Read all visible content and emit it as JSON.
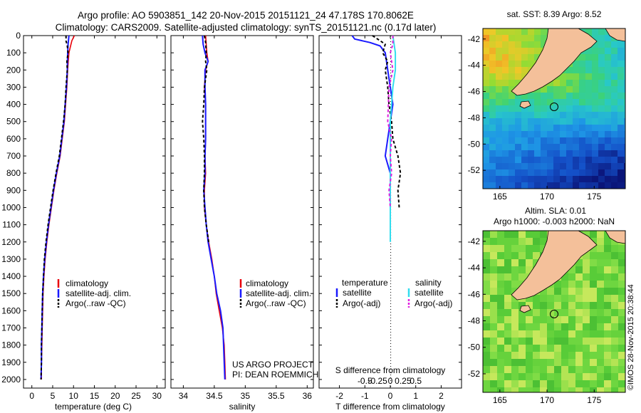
{
  "header": {
    "title_line1": "Argo profile: AO 5903851_142 20-Nov-2015 20151121_24 47.178S 170.8062E",
    "title_line2": "Climatology: CARS2009. Satellite-adjusted climatology: synTS_20151121.nc (0.17d later)"
  },
  "credit": {
    "project": "US ARGO PROJECT",
    "pi": "PI: DEAN ROEMMICH",
    "imos": "©IMOS 28-Nov-2015 20:38:44"
  },
  "colors": {
    "climatology": "#e8000b",
    "satellite": "#1a1aff",
    "argo": "#000000",
    "salinity_sat": "#33ddee",
    "salinity_argo": "#e020e0",
    "land": "#f4c09a"
  },
  "chart_data": [
    {
      "type": "line",
      "name": "temperature-panel",
      "xlabel": "temperature (deg C)",
      "xlim": [
        -2,
        32
      ],
      "xticks": [
        0,
        5,
        10,
        15,
        20,
        25,
        30
      ],
      "ylim": [
        0,
        2050
      ],
      "yticks": [
        0,
        100,
        200,
        300,
        400,
        500,
        600,
        700,
        800,
        900,
        1000,
        1100,
        1200,
        1300,
        1400,
        1500,
        1600,
        1700,
        1800,
        1900,
        2000
      ],
      "legend": {
        "position": "middle",
        "entries": [
          "climatology",
          "satellite-adj. clim.",
          "Argo(..raw -QC)"
        ]
      },
      "series": [
        {
          "name": "climatology",
          "points": [
            [
              10.2,
              0
            ],
            [
              9.6,
              30
            ],
            [
              9.3,
              60
            ],
            [
              8.9,
              100
            ],
            [
              8.6,
              200
            ],
            [
              8.4,
              300
            ],
            [
              8.1,
              400
            ],
            [
              7.8,
              500
            ],
            [
              7.3,
              600
            ],
            [
              6.8,
              700
            ],
            [
              6.0,
              800
            ],
            [
              5.3,
              900
            ],
            [
              4.7,
              1000
            ],
            [
              4.1,
              1100
            ],
            [
              3.6,
              1200
            ],
            [
              3.2,
              1300
            ],
            [
              2.9,
              1400
            ],
            [
              2.7,
              1500
            ],
            [
              2.6,
              1600
            ],
            [
              2.5,
              1700
            ],
            [
              2.4,
              1800
            ],
            [
              2.3,
              1900
            ],
            [
              2.3,
              2000
            ]
          ]
        },
        {
          "name": "satellite",
          "points": [
            [
              8.9,
              0
            ],
            [
              8.7,
              50
            ],
            [
              8.6,
              100
            ],
            [
              8.5,
              200
            ],
            [
              8.3,
              300
            ],
            [
              8.0,
              400
            ],
            [
              7.7,
              500
            ],
            [
              7.2,
              600
            ],
            [
              6.7,
              700
            ],
            [
              5.9,
              800
            ],
            [
              5.2,
              900
            ],
            [
              4.6,
              1000
            ],
            [
              4.0,
              1100
            ],
            [
              3.5,
              1200
            ],
            [
              3.1,
              1300
            ],
            [
              2.8,
              1400
            ],
            [
              2.6,
              1500
            ],
            [
              2.5,
              1600
            ],
            [
              2.4,
              1700
            ],
            [
              2.3,
              1800
            ],
            [
              2.3,
              1900
            ],
            [
              2.2,
              2000
            ]
          ]
        },
        {
          "name": "argo",
          "points": [
            [
              8.2,
              0
            ],
            [
              8.2,
              30
            ],
            [
              8.5,
              60
            ],
            [
              8.7,
              100
            ],
            [
              8.4,
              150
            ],
            [
              8.5,
              200
            ],
            [
              8.2,
              300
            ],
            [
              8.0,
              400
            ],
            [
              7.6,
              500
            ],
            [
              7.1,
              600
            ],
            [
              6.6,
              700
            ],
            [
              5.8,
              800
            ],
            [
              5.1,
              900
            ],
            [
              4.5,
              1000
            ],
            [
              3.9,
              1100
            ],
            [
              3.4,
              1200
            ],
            [
              3.0,
              1300
            ],
            [
              2.8,
              1400
            ],
            [
              2.6,
              1500
            ],
            [
              2.5,
              1600
            ],
            [
              2.4,
              1700
            ],
            [
              2.3,
              1800
            ],
            [
              2.3,
              1900
            ],
            [
              2.2,
              2000
            ]
          ]
        }
      ]
    },
    {
      "type": "line",
      "name": "salinity-panel",
      "xlabel": "salinity",
      "xlim": [
        33.8,
        36.1
      ],
      "xticks": [
        34,
        34.5,
        35,
        35.5,
        36
      ],
      "ylim": [
        0,
        2050
      ],
      "legend": {
        "position": "middle",
        "entries": [
          "climatology",
          "satellite-adj. clim.",
          "Argo(..raw -QC)"
        ]
      },
      "series": [
        {
          "name": "climatology",
          "points": [
            [
              34.36,
              0
            ],
            [
              34.38,
              100
            ],
            [
              34.4,
              150
            ],
            [
              34.36,
              200
            ],
            [
              34.34,
              300
            ],
            [
              34.36,
              400
            ],
            [
              34.36,
              500
            ],
            [
              34.36,
              600
            ],
            [
              34.35,
              700
            ],
            [
              34.36,
              800
            ],
            [
              34.34,
              900
            ],
            [
              34.34,
              1000
            ],
            [
              34.37,
              1100
            ],
            [
              34.41,
              1200
            ],
            [
              34.46,
              1300
            ],
            [
              34.5,
              1400
            ],
            [
              34.53,
              1500
            ],
            [
              34.58,
              1600
            ],
            [
              34.63,
              1700
            ],
            [
              34.66,
              1800
            ],
            [
              34.67,
              1900
            ],
            [
              34.68,
              2000
            ]
          ]
        },
        {
          "name": "satellite",
          "points": [
            [
              34.31,
              0
            ],
            [
              34.32,
              50
            ],
            [
              34.35,
              100
            ],
            [
              34.4,
              150
            ],
            [
              34.35,
              200
            ],
            [
              34.35,
              300
            ],
            [
              34.36,
              400
            ],
            [
              34.36,
              500
            ],
            [
              34.36,
              600
            ],
            [
              34.35,
              700
            ],
            [
              34.35,
              800
            ],
            [
              34.33,
              900
            ],
            [
              34.35,
              1000
            ],
            [
              34.37,
              1100
            ],
            [
              34.4,
              1200
            ],
            [
              34.45,
              1300
            ],
            [
              34.5,
              1400
            ],
            [
              34.54,
              1500
            ],
            [
              34.6,
              1600
            ],
            [
              34.64,
              1700
            ],
            [
              34.65,
              1800
            ],
            [
              34.66,
              1900
            ],
            [
              34.67,
              2000
            ]
          ]
        },
        {
          "name": "argo",
          "points": [
            [
              34.34,
              0
            ],
            [
              34.36,
              40
            ],
            [
              34.37,
              100
            ],
            [
              34.36,
              150
            ],
            [
              34.38,
              200
            ],
            [
              34.34,
              300
            ],
            [
              34.33,
              400
            ],
            [
              34.31,
              500
            ],
            [
              34.33,
              600
            ],
            [
              34.34,
              700
            ],
            [
              34.34,
              800
            ],
            [
              34.33,
              900
            ],
            [
              34.34,
              1000
            ],
            [
              34.37,
              1100
            ],
            [
              34.41,
              1200
            ]
          ]
        }
      ]
    },
    {
      "type": "line",
      "name": "difference-panel",
      "xlabel": "T difference from climatology",
      "xlabel_top": "S difference from climatology",
      "xlim": [
        -2.8,
        2.8
      ],
      "xticks": [
        -2,
        -1,
        0,
        1,
        2
      ],
      "x2ticks": [
        -0.5,
        -0.25,
        0,
        0.25,
        0.5
      ],
      "ylim": [
        0,
        2050
      ],
      "legend": {
        "position": "lower",
        "temperature_title": "temperature",
        "salinity_title": "salinity",
        "entries": [
          "satellite",
          "Argo(-adj)",
          "satellite",
          "Argo(-adj)"
        ]
      },
      "series": [
        {
          "name": "T satellite",
          "points": [
            [
              -1.5,
              0
            ],
            [
              -1.4,
              20
            ],
            [
              -0.8,
              40
            ],
            [
              -0.4,
              60
            ],
            [
              -0.2,
              100
            ],
            [
              -0.1,
              200
            ],
            [
              0.0,
              300
            ],
            [
              0.1,
              400
            ],
            [
              0.0,
              500
            ],
            [
              -0.1,
              600
            ],
            [
              -0.2,
              700
            ],
            [
              0.0,
              800
            ],
            [
              0.0,
              900
            ],
            [
              0.0,
              1000
            ]
          ]
        },
        {
          "name": "T argo",
          "points": [
            [
              -0.7,
              0
            ],
            [
              -0.2,
              50
            ],
            [
              -0.3,
              100
            ],
            [
              -0.1,
              150
            ],
            [
              -0.2,
              200
            ],
            [
              -0.1,
              300
            ],
            [
              -0.05,
              400
            ],
            [
              0.05,
              500
            ],
            [
              0.1,
              600
            ],
            [
              0.3,
              700
            ],
            [
              0.4,
              800
            ],
            [
              0.3,
              900
            ],
            [
              0.35,
              1000
            ]
          ]
        },
        {
          "name": "S satellite",
          "points": [
            [
              0.1,
              0
            ],
            [
              0.2,
              100
            ],
            [
              0.2,
              200
            ],
            [
              0.1,
              300
            ],
            [
              0.0,
              500
            ],
            [
              0.0,
              700
            ],
            [
              0.0,
              900
            ],
            [
              0.0,
              1100
            ],
            [
              0.0,
              1200
            ]
          ]
        },
        {
          "name": "S argo",
          "points": [
            [
              0.1,
              0
            ],
            [
              0.1,
              50
            ],
            [
              0.0,
              100
            ],
            [
              0.1,
              200
            ],
            [
              -0.05,
              300
            ],
            [
              -0.1,
              500
            ],
            [
              0.05,
              600
            ],
            [
              0.0,
              700
            ],
            [
              0.05,
              800
            ],
            [
              -0.05,
              900
            ],
            [
              0.0,
              1000
            ]
          ]
        }
      ]
    },
    {
      "type": "heatmap",
      "name": "sst-map",
      "title": "sat. SST: 8.39 Argo: 8.52",
      "xticks": [
        165,
        170,
        175
      ],
      "yticks": [
        -42,
        -44,
        -46,
        -48,
        -50,
        -52
      ],
      "lon_range": [
        163.2,
        178.3
      ],
      "lat_range": [
        -41.2,
        -53.4
      ],
      "float_position": [
        170.81,
        -47.18
      ]
    },
    {
      "type": "heatmap",
      "name": "sla-map",
      "title_line1": "Altim. SLA: 0.01",
      "title_line2": "Argo h1000: -0.003 h2000: NaN",
      "xticks": [
        165,
        170,
        175
      ],
      "yticks": [
        -42,
        -44,
        -46,
        -48,
        -50,
        -52
      ],
      "lon_range": [
        163.2,
        178.3
      ],
      "lat_range": [
        -41.2,
        -53.4
      ],
      "float_position": [
        170.81,
        -47.18
      ]
    }
  ]
}
